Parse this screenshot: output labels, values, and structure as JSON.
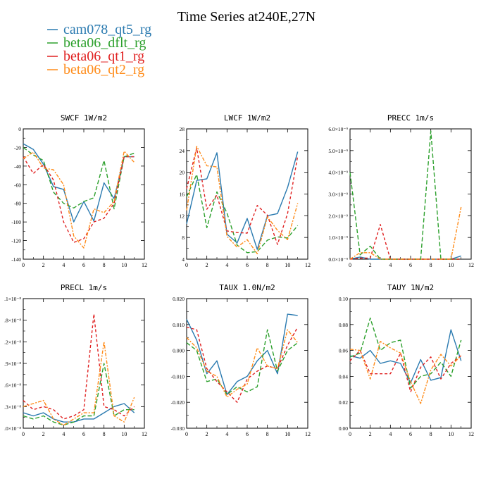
{
  "figure_title": "Time Series at240E,27N",
  "legend": [
    {
      "label": "cam078_qt5_rg",
      "color": "#2a7ab0"
    },
    {
      "label": "beta06_dflt_rg",
      "color": "#2ca02c"
    },
    {
      "label": "beta06_qt1_rg",
      "color": "#e02020"
    },
    {
      "label": "beta06_qt2_rg",
      "color": "#ff8c1a"
    }
  ],
  "chart_data": [
    {
      "type": "line",
      "title": "SWCF  1W/m2",
      "x": [
        0,
        1,
        2,
        3,
        4,
        5,
        6,
        7,
        8,
        9,
        10,
        11
      ],
      "xlim": [
        0,
        12
      ],
      "xticks": [
        "0",
        "2",
        "4",
        "6",
        "8",
        "10",
        "12"
      ],
      "ylim": [
        -140,
        0
      ],
      "yticks": [
        "-140",
        "-120",
        "-100",
        "-80",
        "-60",
        "-40",
        "-20",
        "0"
      ],
      "series": [
        {
          "name": "cam078_qt5_rg",
          "values": [
            -16,
            -22,
            -38,
            -62,
            -65,
            -100,
            -78,
            -99,
            -58,
            -75,
            -30,
            -30
          ]
        },
        {
          "name": "beta06_dflt_rg",
          "values": [
            -20,
            -28,
            -34,
            -68,
            -80,
            -85,
            -78,
            -74,
            -34,
            -86,
            -30,
            -26
          ]
        },
        {
          "name": "beta06_qt1_rg",
          "values": [
            -30,
            -48,
            -38,
            -55,
            -100,
            -122,
            -118,
            -100,
            -96,
            -80,
            -30,
            -30
          ]
        },
        {
          "name": "beta06_qt2_rg",
          "values": [
            -32,
            -25,
            -42,
            -44,
            -60,
            -115,
            -128,
            -86,
            -90,
            -78,
            -24,
            -36
          ]
        }
      ]
    },
    {
      "type": "line",
      "title": "LWCF  1W/m2",
      "x": [
        0,
        1,
        2,
        3,
        4,
        5,
        6,
        7,
        8,
        9,
        10,
        11
      ],
      "xlim": [
        0,
        12
      ],
      "xticks": [
        "0",
        "2",
        "4",
        "6",
        "8",
        "10",
        "12"
      ],
      "ylim": [
        4,
        28
      ],
      "yticks": [
        "4",
        "8",
        "12",
        "16",
        "20",
        "24",
        "28"
      ],
      "series": [
        {
          "name": "cam078_qt5_rg",
          "values": [
            10.5,
            18.5,
            18.8,
            23.6,
            8.6,
            7.0,
            11.5,
            5.8,
            12.0,
            12.4,
            17.2,
            23.8
          ]
        },
        {
          "name": "beta06_dflt_rg",
          "values": [
            15.5,
            19.6,
            9.8,
            16.4,
            12.5,
            6.6,
            5.2,
            5.4,
            7.5,
            8.1,
            7.9,
            10.2
          ]
        },
        {
          "name": "beta06_qt1_rg",
          "values": [
            17.0,
            24.5,
            13.2,
            15.8,
            9.2,
            8.9,
            8.8,
            13.9,
            12.1,
            6.7,
            12.4,
            23.0
          ]
        },
        {
          "name": "beta06_qt2_rg",
          "values": [
            13.0,
            24.8,
            21.2,
            21.0,
            8.2,
            6.2,
            7.6,
            5.0,
            11.8,
            9.3,
            7.6,
            14.3
          ]
        }
      ]
    },
    {
      "type": "line",
      "title": "PRECC  1m/s",
      "x": [
        0,
        1,
        2,
        3,
        4,
        5,
        6,
        7,
        8,
        9,
        10,
        11
      ],
      "xlim": [
        0,
        12
      ],
      "xticks": [
        "0",
        "2",
        "4",
        "6",
        "8",
        "10",
        "12"
      ],
      "ylim": [
        0,
        6e-09
      ],
      "yticks": [
        "0.0×10⁻⁹",
        "1.0×10⁻⁹",
        "2.0×10⁻⁹",
        "3.0×10⁻⁹",
        "4.0×10⁻⁹",
        "5.0×10⁻⁹",
        "6.0×10⁻⁹"
      ],
      "series": [
        {
          "name": "cam078_qt5_rg",
          "values": [
            0.0,
            1e-10,
            0.0,
            0.0,
            0.0,
            0.0,
            0.0,
            0.0,
            0.0,
            0.0,
            0.0,
            1.5e-10
          ]
        },
        {
          "name": "beta06_dflt_rg",
          "values": [
            4e-09,
            2e-10,
            6e-10,
            0.0,
            0.0,
            0.0,
            0.0,
            0.0,
            5.9e-09,
            0.0,
            0.0,
            0.0
          ]
        },
        {
          "name": "beta06_qt1_rg",
          "values": [
            0.0,
            5e-11,
            5e-11,
            1.6e-09,
            0.0,
            0.0,
            0.0,
            0.0,
            0.0,
            0.0,
            0.0,
            0.0
          ]
        },
        {
          "name": "beta06_qt2_rg",
          "values": [
            0.0,
            3e-10,
            3e-10,
            0.0,
            0.0,
            0.0,
            0.0,
            0.0,
            0.0,
            0.0,
            0.0,
            2.4e-09
          ]
        }
      ]
    },
    {
      "type": "line",
      "title": "PRECL  1m/s",
      "x": [
        0,
        1,
        2,
        3,
        4,
        5,
        6,
        7,
        8,
        9,
        10,
        11
      ],
      "xlim": [
        0,
        12
      ],
      "xticks": [
        "0",
        "2",
        "4",
        "6",
        "8",
        "10",
        "12"
      ],
      "ylim": [
        0,
        2.1e-08
      ],
      "yticks": [
        ".0×10⁻⁸",
        ".3×10⁻⁸",
        ".6×10⁻⁸",
        ".9×10⁻⁸",
        ".2×10⁻⁸",
        ".8×10⁻⁸",
        ".1×10⁻⁸"
      ],
      "series": [
        {
          "name": "cam078_qt5_rg",
          "values": [
            2.5e-09,
            2e-09,
            2.5e-09,
            1.5e-09,
            1e-09,
            1e-09,
            1.5e-09,
            1.5e-09,
            2.5e-09,
            3.5e-09,
            4e-09,
            2.5e-09
          ]
        },
        {
          "name": "beta06_dflt_rg",
          "values": [
            2e-09,
            1.5e-09,
            2e-09,
            1e-09,
            5e-10,
            1e-09,
            2e-09,
            2e-09,
            1.05e-08,
            2e-09,
            3e-09,
            3e-09
          ]
        },
        {
          "name": "beta06_qt1_rg",
          "values": [
            4.5e-09,
            3e-09,
            3.5e-09,
            3e-09,
            1.5e-09,
            2e-09,
            3e-09,
            1.85e-08,
            3.5e-09,
            3e-09,
            2e-09,
            3.5e-09
          ]
        },
        {
          "name": "beta06_qt2_rg",
          "values": [
            3.5e-09,
            4e-09,
            4.5e-09,
            1.5e-09,
            5e-10,
            1.5e-09,
            2.5e-09,
            2.5e-09,
            1.4e-08,
            2e-09,
            1e-09,
            5e-09
          ]
        }
      ]
    },
    {
      "type": "line",
      "title": "TAUX  1.0N/m2",
      "x": [
        0,
        1,
        2,
        3,
        4,
        5,
        6,
        7,
        8,
        9,
        10,
        11
      ],
      "xlim": [
        0,
        12
      ],
      "xticks": [
        "0",
        "2",
        "4",
        "6",
        "8",
        "10",
        "12"
      ],
      "ylim": [
        -0.03,
        0.02
      ],
      "yticks": [
        "-0.030",
        "-0.020",
        "-0.010",
        "0.000",
        "0.010",
        "0.020"
      ],
      "series": [
        {
          "name": "cam078_qt5_rg",
          "values": [
            0.012,
            0.004,
            -0.009,
            -0.004,
            -0.017,
            -0.012,
            -0.01,
            -0.004,
            0.0,
            -0.009,
            0.014,
            0.0135
          ]
        },
        {
          "name": "beta06_dflt_rg",
          "values": [
            0.003,
            0.0,
            -0.012,
            -0.011,
            -0.017,
            -0.014,
            -0.016,
            -0.014,
            0.008,
            -0.008,
            0.0,
            0.003
          ]
        },
        {
          "name": "beta06_qt1_rg",
          "values": [
            0.009,
            0.008,
            -0.007,
            -0.012,
            -0.016,
            -0.02,
            -0.011,
            -0.008,
            -0.006,
            -0.007,
            0.002,
            0.009
          ]
        },
        {
          "name": "beta06_qt2_rg",
          "values": [
            0.005,
            0.001,
            -0.008,
            -0.01,
            -0.018,
            -0.015,
            -0.013,
            0.001,
            -0.006,
            -0.007,
            0.008,
            0.003
          ]
        }
      ]
    },
    {
      "type": "line",
      "title": "TAUY  1N/m2",
      "x": [
        0,
        1,
        2,
        3,
        4,
        5,
        6,
        7,
        8,
        9,
        10,
        11
      ],
      "xlim": [
        0,
        12
      ],
      "xticks": [
        "0",
        "2",
        "4",
        "6",
        "8",
        "10",
        "12"
      ],
      "ylim": [
        0,
        0.1
      ],
      "yticks": [
        "0.00",
        "0.02",
        "0.04",
        "0.06",
        "0.08",
        "0.10"
      ],
      "series": [
        {
          "name": "cam078_qt5_rg",
          "values": [
            0.056,
            0.054,
            0.06,
            0.05,
            0.052,
            0.05,
            0.035,
            0.053,
            0.037,
            0.039,
            0.076,
            0.052
          ]
        },
        {
          "name": "beta06_dflt_rg",
          "values": [
            0.055,
            0.058,
            0.085,
            0.06,
            0.066,
            0.068,
            0.031,
            0.04,
            0.042,
            0.051,
            0.04,
            0.068
          ]
        },
        {
          "name": "beta06_qt1_rg",
          "values": [
            0.052,
            0.06,
            0.042,
            0.042,
            0.042,
            0.058,
            0.028,
            0.047,
            0.055,
            0.038,
            0.05,
            0.056
          ]
        },
        {
          "name": "beta06_qt2_rg",
          "values": [
            0.061,
            0.06,
            0.038,
            0.067,
            0.062,
            0.058,
            0.036,
            0.019,
            0.045,
            0.057,
            0.048,
            0.056
          ]
        }
      ]
    }
  ]
}
